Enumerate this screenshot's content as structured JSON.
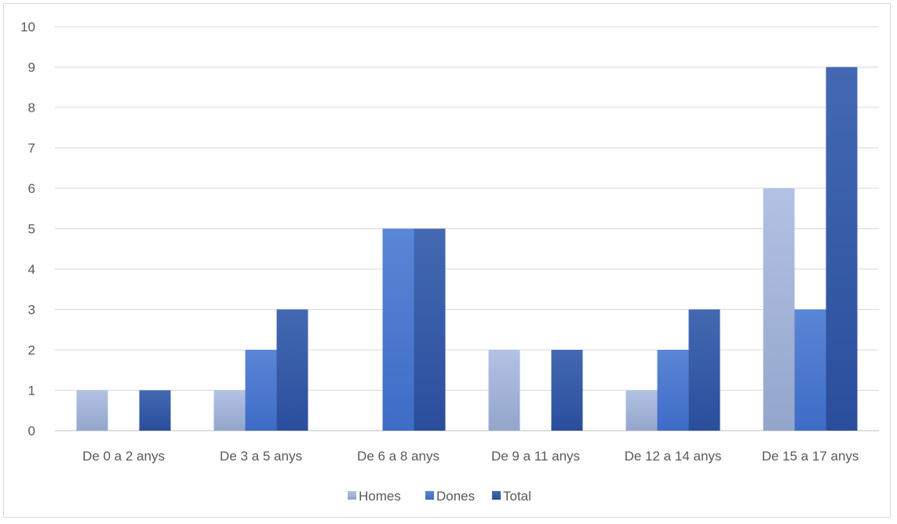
{
  "chart_data": {
    "type": "bar",
    "title": "",
    "xlabel": "",
    "ylabel": "",
    "categories": [
      "De 0 a 2 anys",
      "De 3 a 5 anys",
      "De 6 a 8 anys",
      "De 9 a 11 anys",
      "De 12 a 14 anys",
      "De 15 a 17 anys"
    ],
    "series": [
      {
        "name": "Homes",
        "values": [
          1,
          1,
          0,
          2,
          1,
          6
        ],
        "color": "#a5b6dc"
      },
      {
        "name": "Dones",
        "values": [
          0,
          2,
          5,
          0,
          2,
          3
        ],
        "color": "#4a79d0"
      },
      {
        "name": "Total",
        "values": [
          1,
          3,
          5,
          2,
          3,
          9
        ],
        "color": "#3457a6"
      }
    ],
    "ylim": [
      0,
      10
    ],
    "yticks": [
      0,
      1,
      2,
      3,
      4,
      5,
      6,
      7,
      8,
      9,
      10
    ],
    "grid": true,
    "legend_position": "bottom"
  }
}
